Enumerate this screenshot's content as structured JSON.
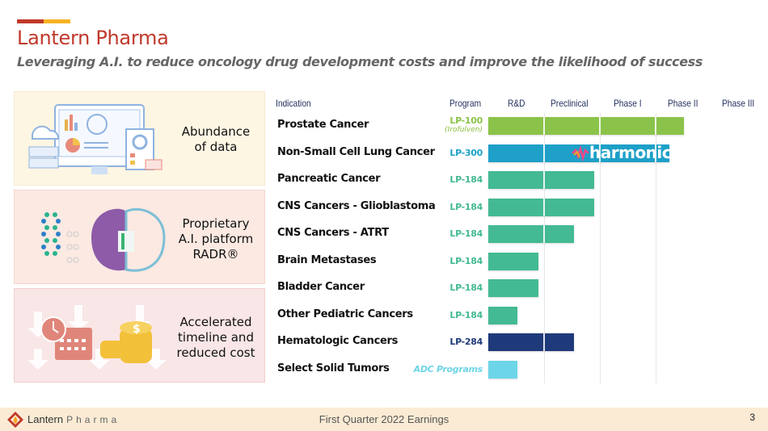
{
  "header": {
    "title": "Lantern Pharma",
    "subtitle": "Leveraging A.I. to reduce oncology drug development costs and improve the likelihood of success"
  },
  "panels": [
    {
      "icon": "data-dashboard-icon",
      "text_lines": [
        "Abundance",
        "of data"
      ]
    },
    {
      "icon": "ai-brain-icon",
      "text_lines": [
        "Proprietary",
        "A.I. platform",
        "RADR®"
      ]
    },
    {
      "icon": "calendar-coins-icon",
      "text_lines": [
        "Accelerated",
        "timeline and",
        "reduced cost"
      ]
    }
  ],
  "colors": {
    "brand_red": "#c0392b",
    "brand_yellow": "#f5b324",
    "lp100": "#8bc34a",
    "lp300": "#1ea0c8",
    "lp184": "#43b994",
    "lp284": "#1f3a7a",
    "adc": "#6dd5e8"
  },
  "chart_data": {
    "type": "bar",
    "orientation": "horizontal",
    "title": "",
    "columns": {
      "indication": "Indication",
      "program": "Program"
    },
    "stages": [
      "R&D",
      "Preclinical",
      "Phase I",
      "Phase II",
      "Phase III"
    ],
    "xlim": [
      0,
      5
    ],
    "grid": true,
    "rows": [
      {
        "indication": "Prostate Cancer",
        "program": "LP-100",
        "program_sub": "(Irofulven)",
        "progress": 3.5,
        "color": "#8bc34a",
        "label_color": "#8bc34a",
        "label_italic": false
      },
      {
        "indication": "Non-Small Cell Lung Cancer",
        "program": "LP-300",
        "program_sub": "",
        "progress": 3.25,
        "color": "#1ea0c8",
        "label_color": "#1ea0c8",
        "label_italic": false,
        "overlay": "harmonic"
      },
      {
        "indication": "Pancreatic Cancer",
        "program": "LP-184",
        "program_sub": "",
        "progress": 1.9,
        "color": "#43b994",
        "label_color": "#43b994",
        "label_italic": false
      },
      {
        "indication": "CNS Cancers - Glioblastoma",
        "program": "LP-184",
        "program_sub": "",
        "progress": 1.9,
        "color": "#43b994",
        "label_color": "#43b994",
        "label_italic": false
      },
      {
        "indication": "CNS Cancers - ATRT",
        "program": "LP-184",
        "program_sub": "",
        "progress": 1.53,
        "color": "#43b994",
        "label_color": "#43b994",
        "label_italic": false
      },
      {
        "indication": "Brain Metastases",
        "program": "LP-184",
        "program_sub": "",
        "progress": 0.9,
        "color": "#43b994",
        "label_color": "#43b994",
        "label_italic": false
      },
      {
        "indication": "Bladder Cancer",
        "program": "LP-184",
        "program_sub": "",
        "progress": 0.9,
        "color": "#43b994",
        "label_color": "#43b994",
        "label_italic": false
      },
      {
        "indication": "Other Pediatric Cancers",
        "program": "LP-184",
        "program_sub": "",
        "progress": 0.52,
        "color": "#43b994",
        "label_color": "#43b994",
        "label_italic": false
      },
      {
        "indication": "Hematologic Cancers",
        "program": "LP-284",
        "program_sub": "",
        "progress": 1.53,
        "color": "#1f3a7a",
        "label_color": "#1f3a7a",
        "label_italic": false
      },
      {
        "indication": "Select Solid Tumors",
        "program": "ADC Programs",
        "program_sub": "",
        "progress": 0.52,
        "color": "#6dd5e8",
        "label_color": "#6dd5e8",
        "label_italic": true
      }
    ],
    "annotations": [
      {
        "row": 1,
        "text": "harmonic"
      }
    ]
  },
  "footer": {
    "brand": "Lantern",
    "brand_suffix": "Pharma",
    "center": "First Quarter 2022 Earnings",
    "page": "3"
  }
}
